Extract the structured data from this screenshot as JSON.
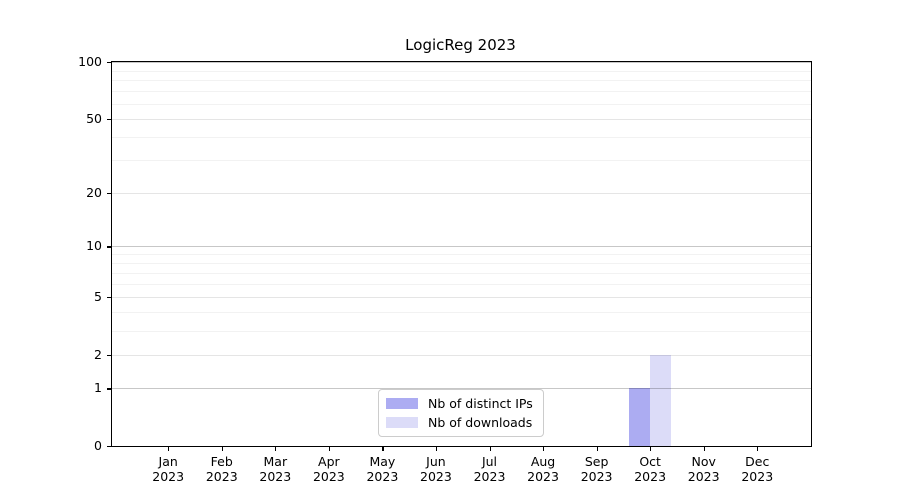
{
  "title": "LogicReg 2023",
  "legend": {
    "items": [
      {
        "label": "Nb of distinct IPs",
        "color": "#acacf2"
      },
      {
        "label": "Nb of downloads",
        "color": "#dcdcf8"
      }
    ],
    "position": "lower center"
  },
  "axes": {
    "spine_color": "#000000",
    "tick_color": "#000000",
    "grid_decade_values": [
      1,
      10,
      100
    ],
    "grid_labeled_values": [
      2,
      5,
      20,
      50
    ],
    "grid_minor_values": [
      3,
      4,
      6,
      7,
      8,
      9,
      30,
      40,
      60,
      70,
      80,
      90
    ]
  },
  "chart_data": {
    "type": "bar",
    "title": "LogicReg 2023",
    "categories": [
      "Jan 2023",
      "Feb 2023",
      "Mar 2023",
      "Apr 2023",
      "May 2023",
      "Jun 2023",
      "Jul 2023",
      "Aug 2023",
      "Sep 2023",
      "Oct 2023",
      "Nov 2023",
      "Dec 2023"
    ],
    "series": [
      {
        "name": "Nb of distinct IPs",
        "color": "#acacf2",
        "values": [
          0,
          0,
          0,
          0,
          0,
          0,
          0,
          0,
          0,
          1,
          0,
          0
        ]
      },
      {
        "name": "Nb of downloads",
        "color": "#dcdcf8",
        "values": [
          0,
          0,
          0,
          0,
          0,
          0,
          0,
          0,
          0,
          2,
          0,
          0
        ]
      }
    ],
    "xlabel": "",
    "ylabel": "",
    "yscale": "log1p",
    "ylim": [
      0,
      100
    ],
    "yticks": [
      0,
      1,
      2,
      5,
      10,
      20,
      50,
      100
    ],
    "grid": "horizontal",
    "legend_position": "lower center"
  }
}
